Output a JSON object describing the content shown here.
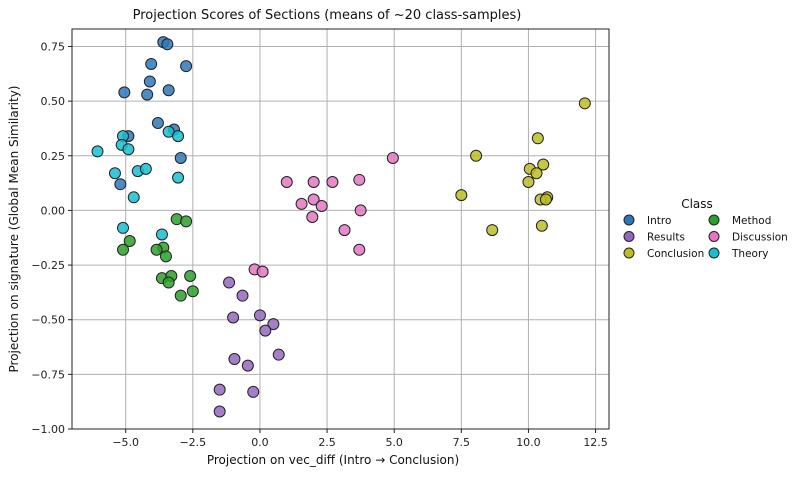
{
  "chart_data": {
    "type": "scatter",
    "title": "Projection Scores of Sections (means of ~20 class-samples)",
    "xlabel": "Projection on vec_diff (Intro → Conclusion)",
    "ylabel": "Projection on signature (Global Mean Similarity)",
    "xlim": [
      -7.0,
      13.0
    ],
    "ylim": [
      -1.0,
      0.83
    ],
    "xticks": [
      -5.0,
      -2.5,
      0.0,
      2.5,
      5.0,
      7.5,
      10.0,
      12.5
    ],
    "xtick_labels": [
      "−5.0",
      "−2.5",
      "0.0",
      "2.5",
      "5.0",
      "7.5",
      "10.0",
      "12.5"
    ],
    "yticks": [
      -1.0,
      -0.75,
      -0.5,
      -0.25,
      0.0,
      0.25,
      0.5,
      0.75
    ],
    "ytick_labels": [
      "−1.00",
      "−0.75",
      "−0.50",
      "−0.25",
      "0.00",
      "0.25",
      "0.50",
      "0.75"
    ],
    "grid": true,
    "legend_title": "Class",
    "legend_position": "right",
    "series": [
      {
        "name": "Intro",
        "color": "#2b78b8",
        "points": [
          [
            -3.6,
            0.77
          ],
          [
            -3.45,
            0.76
          ],
          [
            -4.05,
            0.67
          ],
          [
            -2.75,
            0.66
          ],
          [
            -4.1,
            0.59
          ],
          [
            -5.05,
            0.54
          ],
          [
            -4.2,
            0.53
          ],
          [
            -3.4,
            0.55
          ],
          [
            -3.8,
            0.4
          ],
          [
            -3.2,
            0.37
          ],
          [
            -4.9,
            0.34
          ],
          [
            -2.95,
            0.24
          ],
          [
            -5.2,
            0.12
          ]
        ]
      },
      {
        "name": "Method",
        "color": "#2ca02c",
        "points": [
          [
            -3.1,
            -0.04
          ],
          [
            -2.75,
            -0.05
          ],
          [
            -4.85,
            -0.14
          ],
          [
            -5.1,
            -0.18
          ],
          [
            -3.6,
            -0.17
          ],
          [
            -3.85,
            -0.18
          ],
          [
            -3.5,
            -0.21
          ],
          [
            -3.65,
            -0.31
          ],
          [
            -3.3,
            -0.3
          ],
          [
            -2.6,
            -0.3
          ],
          [
            -3.4,
            -0.33
          ],
          [
            -2.5,
            -0.37
          ],
          [
            -2.95,
            -0.39
          ]
        ]
      },
      {
        "name": "Results",
        "color": "#9467bd",
        "points": [
          [
            -1.15,
            -0.33
          ],
          [
            -0.65,
            -0.39
          ],
          [
            -1.0,
            -0.49
          ],
          [
            0.0,
            -0.48
          ],
          [
            0.5,
            -0.52
          ],
          [
            0.2,
            -0.55
          ],
          [
            -0.95,
            -0.68
          ],
          [
            0.7,
            -0.66
          ],
          [
            -0.45,
            -0.71
          ],
          [
            -1.5,
            -0.82
          ],
          [
            -0.25,
            -0.83
          ],
          [
            -1.5,
            -0.92
          ]
        ]
      },
      {
        "name": "Discussion",
        "color": "#e377c2",
        "points": [
          [
            -0.2,
            -0.27
          ],
          [
            0.1,
            -0.28
          ],
          [
            1.0,
            0.13
          ],
          [
            2.0,
            0.13
          ],
          [
            2.7,
            0.13
          ],
          [
            3.7,
            0.14
          ],
          [
            2.0,
            0.05
          ],
          [
            1.55,
            0.03
          ],
          [
            2.3,
            0.02
          ],
          [
            3.75,
            0.0
          ],
          [
            1.95,
            -0.03
          ],
          [
            3.15,
            -0.09
          ],
          [
            3.7,
            -0.18
          ],
          [
            4.95,
            0.24
          ]
        ]
      },
      {
        "name": "Conclusion",
        "color": "#bcbd22",
        "points": [
          [
            12.1,
            0.49
          ],
          [
            10.35,
            0.33
          ],
          [
            8.05,
            0.25
          ],
          [
            10.55,
            0.21
          ],
          [
            10.05,
            0.19
          ],
          [
            10.3,
            0.17
          ],
          [
            10.0,
            0.13
          ],
          [
            7.5,
            0.07
          ],
          [
            10.7,
            0.06
          ],
          [
            10.45,
            0.05
          ],
          [
            10.65,
            0.05
          ],
          [
            10.5,
            -0.07
          ],
          [
            8.65,
            -0.09
          ]
        ]
      },
      {
        "name": "Theory",
        "color": "#17becf",
        "points": [
          [
            -5.1,
            0.34
          ],
          [
            -3.4,
            0.36
          ],
          [
            -3.05,
            0.34
          ],
          [
            -5.15,
            0.3
          ],
          [
            -4.9,
            0.28
          ],
          [
            -6.05,
            0.27
          ],
          [
            -5.4,
            0.17
          ],
          [
            -4.55,
            0.18
          ],
          [
            -4.25,
            0.19
          ],
          [
            -3.05,
            0.15
          ],
          [
            -4.7,
            0.06
          ],
          [
            -5.1,
            -0.08
          ],
          [
            -3.65,
            -0.11
          ]
        ]
      }
    ]
  }
}
